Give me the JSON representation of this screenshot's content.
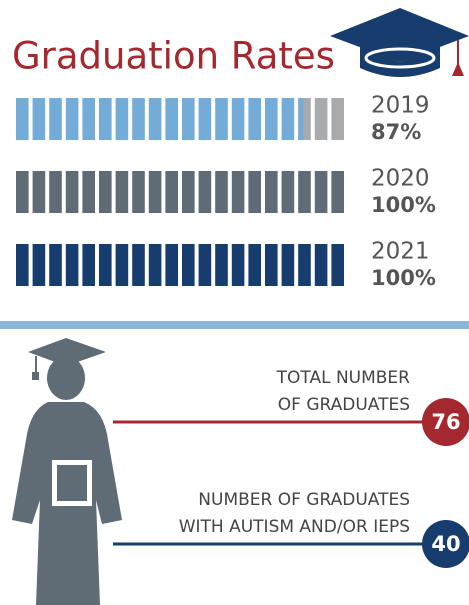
{
  "header": {
    "title": "Graduation Rates"
  },
  "rates": [
    {
      "year": "2019",
      "value": 87,
      "label": "87%",
      "color": "#74acd8"
    },
    {
      "year": "2020",
      "value": 100,
      "label": "100%",
      "color": "#5f6b75"
    },
    {
      "year": "2021",
      "value": 100,
      "label": "100%",
      "color": "#173d6e"
    }
  ],
  "remainder_color": "#a9aaab",
  "stats": [
    {
      "lines": [
        "TOTAL NUMBER",
        "OF GRADUATES"
      ],
      "value": 76,
      "color": "#a4282e"
    },
    {
      "lines": [
        "NUMBER OF GRADUATES",
        "WITH AUTISM AND/OR IEPS"
      ],
      "value": 40,
      "color": "#173d6e"
    }
  ]
}
